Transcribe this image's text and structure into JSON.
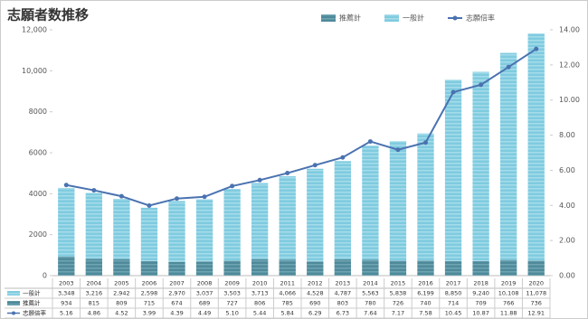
{
  "chart_data": {
    "type": "bar",
    "title": "志願者数推移",
    "categories": [
      "2003",
      "2004",
      "2005",
      "2006",
      "2007",
      "2008",
      "2009",
      "2010",
      "2011",
      "2012",
      "2013",
      "2014",
      "2015",
      "2016",
      "2017",
      "2018",
      "2019",
      "2020"
    ],
    "series": [
      {
        "name": "推薦計",
        "type": "bar",
        "color": "#4f8a9a",
        "values": [
          934,
          815,
          809,
          715,
          674,
          689,
          727,
          806,
          785,
          690,
          803,
          780,
          726,
          740,
          714,
          709,
          766,
          736
        ]
      },
      {
        "name": "一般計",
        "type": "bar",
        "color": "#7fcbe0",
        "values": [
          3348,
          3216,
          2942,
          2598,
          2970,
          3037,
          3503,
          3713,
          4066,
          4528,
          4787,
          5563,
          5838,
          6199,
          8850,
          9240,
          10108,
          11078
        ],
        "value_labels": [
          "3,348",
          "3,216",
          "2,942",
          "2,598",
          "2,970",
          "3,037",
          "3,503",
          "3,713",
          "4,066",
          "4,528",
          "4,787",
          "5,563",
          "5,838",
          "6,199",
          "8,850",
          "9,240",
          "10,108",
          "11,078"
        ]
      },
      {
        "name": "志願倍率",
        "type": "line",
        "axis": "y2",
        "color": "#4a72b0",
        "values": [
          5.16,
          4.86,
          4.52,
          3.99,
          4.39,
          4.49,
          5.1,
          5.44,
          5.84,
          6.29,
          6.73,
          7.64,
          7.17,
          7.58,
          10.45,
          10.87,
          11.88,
          12.91
        ],
        "value_labels": [
          "5.16",
          "4.86",
          "4.52",
          "3.99",
          "4.39",
          "4.49",
          "5.10",
          "5.44",
          "5.84",
          "6.29",
          "6.73",
          "7.64",
          "7.17",
          "7.58",
          "10.45",
          "10.87",
          "11.88",
          "12.91"
        ]
      }
    ],
    "stacked": true,
    "ylim": [
      0,
      12000
    ],
    "yticks": [
      0,
      2000,
      4000,
      6000,
      8000,
      {
        "value": 10000,
        "label": "10,000"
      },
      {
        "value": 12000,
        "label": "12,000"
      }
    ],
    "y2lim": [
      0,
      14
    ],
    "y2ticks": [
      {
        "value": 0,
        "label": "0.00"
      },
      {
        "value": 2,
        "label": "2.00"
      },
      {
        "value": 4,
        "label": "4.00"
      },
      {
        "value": 6,
        "label": "6.00"
      },
      {
        "value": 8,
        "label": "8.00"
      },
      {
        "value": 10,
        "label": "10.00"
      },
      {
        "value": 12,
        "label": "12.00"
      },
      {
        "value": 14,
        "label": "14.00"
      }
    ],
    "grid": false
  }
}
